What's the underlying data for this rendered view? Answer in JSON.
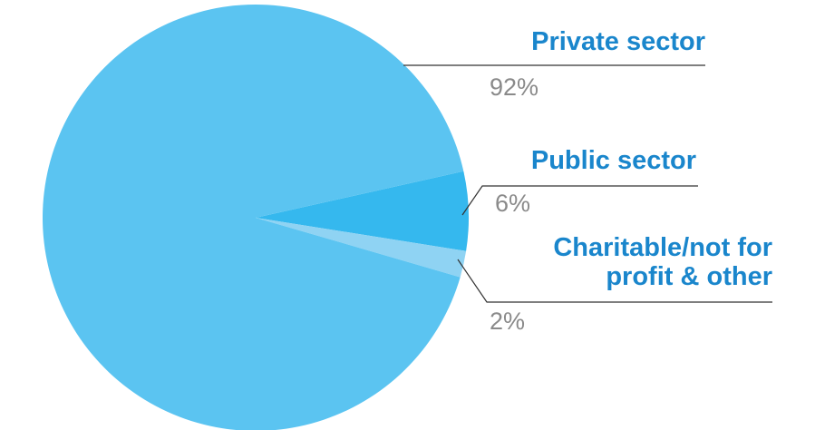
{
  "chart_data": {
    "type": "pie",
    "categories": [
      "Private sector",
      "Public sector",
      "Charitable/not for profit & other"
    ],
    "values": [
      92,
      6,
      2
    ],
    "value_labels": [
      "92%",
      "6%",
      "2%"
    ],
    "colors": [
      "#5bc4f1",
      "#35b8ee",
      "#8fd3f3"
    ]
  }
}
